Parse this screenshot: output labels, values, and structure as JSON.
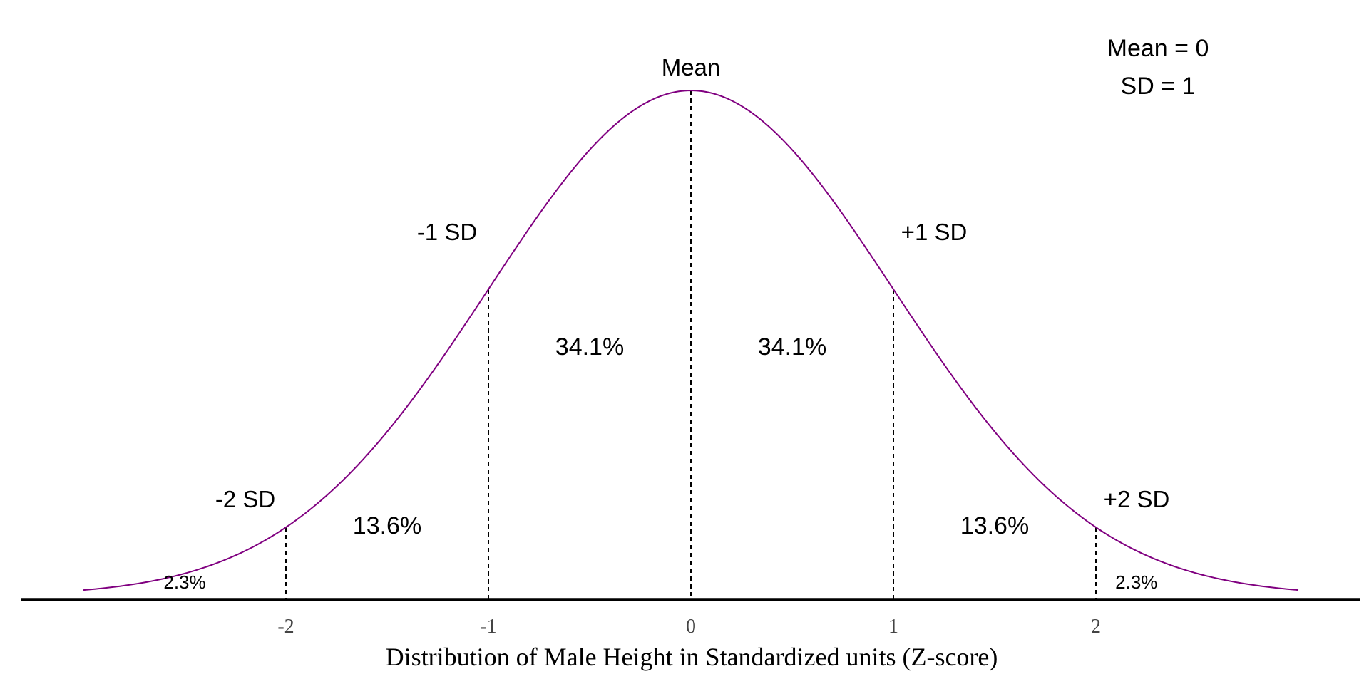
{
  "chart_data": {
    "type": "line",
    "title": "",
    "xlabel": "Distribution of Male Height in Standardized units (Z-score)",
    "ylabel": "",
    "xlim": [
      -3,
      3
    ],
    "ylim": [
      0,
      0.4
    ],
    "grid": false,
    "legend": "none",
    "curve": {
      "distribution": "normal",
      "mean": 0,
      "sd": 1,
      "x_min": -3,
      "x_max": 3,
      "color": "#800080"
    },
    "x_ticks": [
      {
        "value": -2,
        "label": "-2"
      },
      {
        "value": -1,
        "label": "-1"
      },
      {
        "value": 0,
        "label": "0"
      },
      {
        "value": 1,
        "label": "1"
      },
      {
        "value": 2,
        "label": "2"
      }
    ],
    "sd_markers": [
      {
        "x": -2,
        "label": "-2 SD"
      },
      {
        "x": -1,
        "label": "-1 SD"
      },
      {
        "x": 0,
        "label": "Mean"
      },
      {
        "x": 1,
        "label": "+1 SD"
      },
      {
        "x": 2,
        "label": "+2 SD"
      }
    ],
    "region_percentages": [
      {
        "from": -3,
        "to": -2,
        "label": "2.3%",
        "value": 2.3
      },
      {
        "from": -2,
        "to": -1,
        "label": "13.6%",
        "value": 13.6
      },
      {
        "from": -1,
        "to": 0,
        "label": "34.1%",
        "value": 34.1
      },
      {
        "from": 0,
        "to": 1,
        "label": "34.1%",
        "value": 34.1
      },
      {
        "from": 1,
        "to": 2,
        "label": "13.6%",
        "value": 13.6
      },
      {
        "from": 2,
        "to": 3,
        "label": "2.3%",
        "value": 2.3
      }
    ],
    "annotation": [
      "Mean = 0",
      "SD = 1"
    ]
  }
}
